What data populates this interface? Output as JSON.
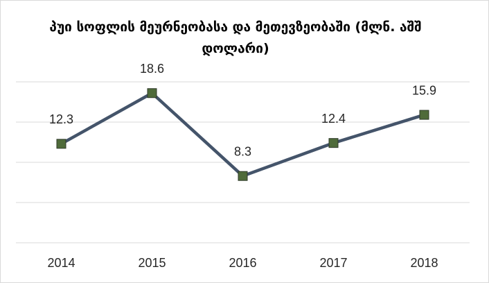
{
  "chart_data": {
    "type": "line",
    "title": "პუი სოფლის მეურნეობასა და მეთევზეობაში (მლნ. აშშ დოლარი)",
    "categories": [
      "2014",
      "2015",
      "2016",
      "2017",
      "2018"
    ],
    "values": [
      12.3,
      18.6,
      8.3,
      12.4,
      15.9
    ],
    "color": "#44546a",
    "marker_color": "#4f6b3a",
    "ylim": [
      0,
      20
    ],
    "yticks": [
      0,
      5,
      10,
      15,
      20
    ],
    "grid": true
  }
}
